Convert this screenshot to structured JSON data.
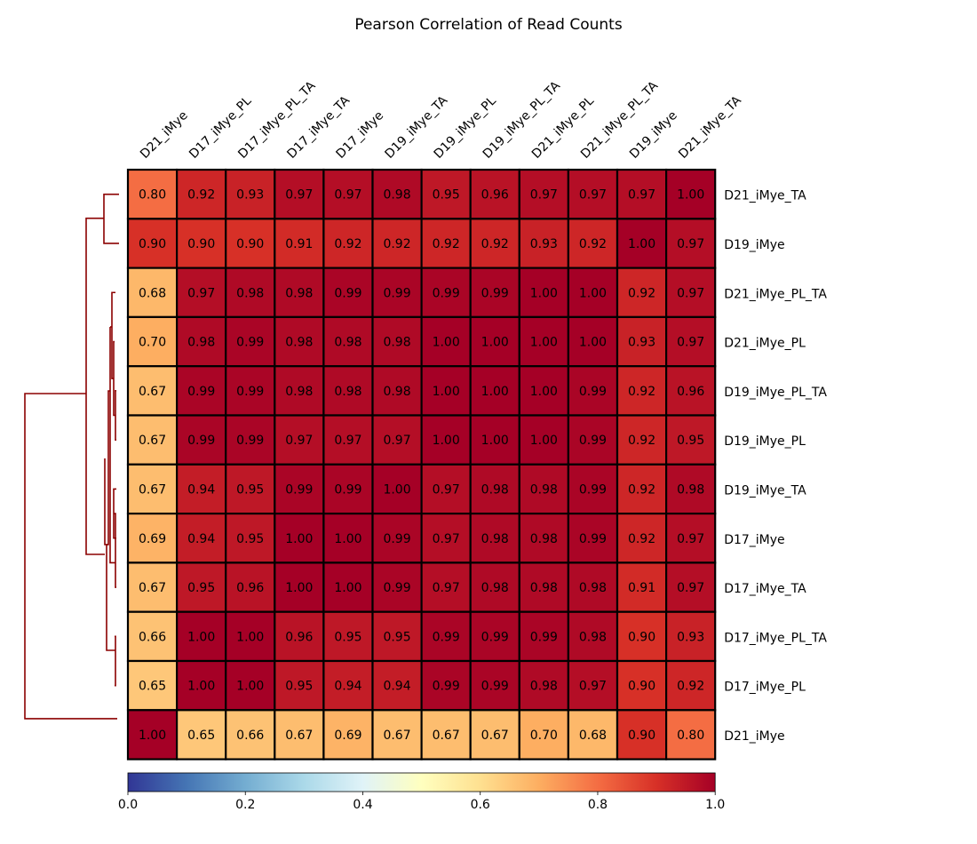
{
  "chart_data": {
    "type": "heatmap",
    "title": "Pearson Correlation of Read Counts",
    "columns": [
      "D21_iMye",
      "D17_iMye_PL",
      "D17_iMye_PL_TA",
      "D17_iMye_TA",
      "D17_iMye",
      "D19_iMye_TA",
      "D19_iMye_PL",
      "D19_iMye_PL_TA",
      "D21_iMye_PL",
      "D21_iMye_PL_TA",
      "D19_iMye",
      "D21_iMye_TA"
    ],
    "rows": [
      "D21_iMye_TA",
      "D19_iMye",
      "D21_iMye_PL_TA",
      "D21_iMye_PL",
      "D19_iMye_PL_TA",
      "D19_iMye_PL",
      "D19_iMye_TA",
      "D17_iMye",
      "D17_iMye_TA",
      "D17_iMye_PL_TA",
      "D17_iMye_PL",
      "D21_iMye"
    ],
    "values": [
      [
        0.8,
        0.92,
        0.93,
        0.97,
        0.97,
        0.98,
        0.95,
        0.96,
        0.97,
        0.97,
        0.97,
        1.0
      ],
      [
        0.9,
        0.9,
        0.9,
        0.91,
        0.92,
        0.92,
        0.92,
        0.92,
        0.93,
        0.92,
        1.0,
        0.97
      ],
      [
        0.68,
        0.97,
        0.98,
        0.98,
        0.99,
        0.99,
        0.99,
        0.99,
        1.0,
        1.0,
        0.92,
        0.97
      ],
      [
        0.7,
        0.98,
        0.99,
        0.98,
        0.98,
        0.98,
        1.0,
        1.0,
        1.0,
        1.0,
        0.93,
        0.97
      ],
      [
        0.67,
        0.99,
        0.99,
        0.98,
        0.98,
        0.98,
        1.0,
        1.0,
        1.0,
        0.99,
        0.92,
        0.96
      ],
      [
        0.67,
        0.99,
        0.99,
        0.97,
        0.97,
        0.97,
        1.0,
        1.0,
        1.0,
        0.99,
        0.92,
        0.95
      ],
      [
        0.67,
        0.94,
        0.95,
        0.99,
        0.99,
        1.0,
        0.97,
        0.98,
        0.98,
        0.99,
        0.92,
        0.98
      ],
      [
        0.69,
        0.94,
        0.95,
        1.0,
        1.0,
        0.99,
        0.97,
        0.98,
        0.98,
        0.99,
        0.92,
        0.97
      ],
      [
        0.67,
        0.95,
        0.96,
        1.0,
        1.0,
        0.99,
        0.97,
        0.98,
        0.98,
        0.98,
        0.91,
        0.97
      ],
      [
        0.66,
        1.0,
        1.0,
        0.96,
        0.95,
        0.95,
        0.99,
        0.99,
        0.99,
        0.98,
        0.9,
        0.93
      ],
      [
        0.65,
        1.0,
        1.0,
        0.95,
        0.94,
        0.94,
        0.99,
        0.99,
        0.98,
        0.97,
        0.9,
        0.92
      ],
      [
        1.0,
        0.65,
        0.66,
        0.67,
        0.69,
        0.67,
        0.67,
        0.67,
        0.7,
        0.68,
        0.9,
        0.8
      ]
    ],
    "colormap": "RdYlBu_r",
    "colormap_stops": [
      "#313695",
      "#4575b4",
      "#74add1",
      "#abd9e9",
      "#e0f3f8",
      "#ffffbf",
      "#fee090",
      "#fdae61",
      "#f46d43",
      "#d73027",
      "#a50026"
    ],
    "vmin": 0.0,
    "vmax": 1.0,
    "colorbar_ticks": [
      "0.0",
      "0.2",
      "0.4",
      "0.6",
      "0.8",
      "1.0"
    ],
    "dendrogram_color": "#8b0000",
    "grid_color": "#000000"
  }
}
